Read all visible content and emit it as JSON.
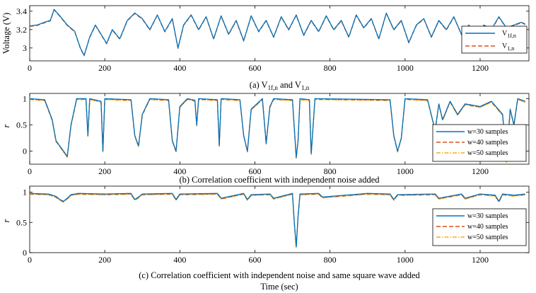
{
  "chart_data": [
    {
      "type": "line",
      "caption_prefix": "(a) V",
      "caption_sub1": "1f,n",
      "caption_mid": " and V",
      "caption_sub2": "1,n",
      "ylabel": "Voltage (V)",
      "xlim": [
        0,
        1330
      ],
      "ylim": [
        2.86,
        3.46
      ],
      "xticks": [
        0,
        200,
        400,
        600,
        800,
        1000,
        1200
      ],
      "yticks": [
        3,
        3.2,
        3.4
      ],
      "ytick_labels": [
        "3",
        "3.2",
        "3.4"
      ],
      "legend_position": "right",
      "series": [
        {
          "name": "V",
          "sub": "1f,n",
          "color": "#0072BD",
          "dash": "solid"
        },
        {
          "name": "V",
          "sub": "1,n",
          "color": "#D95319",
          "dash": "dashed"
        }
      ],
      "x": [
        0,
        20,
        40,
        55,
        65,
        80,
        100,
        120,
        135,
        145,
        160,
        175,
        190,
        205,
        220,
        240,
        260,
        280,
        300,
        320,
        340,
        360,
        380,
        395,
        410,
        430,
        450,
        470,
        490,
        510,
        530,
        550,
        570,
        590,
        610,
        630,
        650,
        670,
        690,
        710,
        730,
        750,
        770,
        790,
        810,
        830,
        850,
        870,
        890,
        910,
        930,
        950,
        970,
        990,
        1010,
        1030,
        1050,
        1070,
        1090,
        1110,
        1130,
        1150,
        1170,
        1190,
        1210,
        1230,
        1250,
        1270,
        1290,
        1310,
        1320
      ],
      "values": [
        3.24,
        3.25,
        3.28,
        3.3,
        3.42,
        3.35,
        3.25,
        3.18,
        3.0,
        2.92,
        3.12,
        3.25,
        3.15,
        3.05,
        3.2,
        3.1,
        3.3,
        3.38,
        3.32,
        3.2,
        3.36,
        3.18,
        3.32,
        3.0,
        3.25,
        3.36,
        3.2,
        3.34,
        3.1,
        3.35,
        3.15,
        3.3,
        3.08,
        3.35,
        3.18,
        3.3,
        3.12,
        3.34,
        3.2,
        3.36,
        3.14,
        3.3,
        3.18,
        3.35,
        3.2,
        3.3,
        3.12,
        3.36,
        3.22,
        3.32,
        3.1,
        3.38,
        3.2,
        3.3,
        3.06,
        3.25,
        3.32,
        3.12,
        3.3,
        3.2,
        3.34,
        3.15,
        3.25,
        3.08,
        3.25,
        3.2,
        3.34,
        3.22,
        3.25,
        3.28,
        3.26
      ]
    },
    {
      "type": "line",
      "caption": "(b) Correlation coefficient with independent noise added",
      "ylabel": "r",
      "xlim": [
        0,
        1330
      ],
      "ylim": [
        -0.25,
        1.1
      ],
      "xticks": [
        0,
        200,
        400,
        600,
        800,
        1000,
        1200
      ],
      "yticks": [
        0,
        0.5,
        1
      ],
      "ytick_labels": [
        "0",
        "0.5",
        "1"
      ],
      "legend_position": "right",
      "series": [
        {
          "name": "w=30 samples",
          "color": "#0072BD",
          "dash": "solid"
        },
        {
          "name": "w=40 samples",
          "color": "#D95319",
          "dash": "dashed"
        },
        {
          "name": "w=50 samples",
          "color": "#EDB120",
          "dash": "dashdot"
        }
      ],
      "x": [
        0,
        40,
        60,
        70,
        80,
        90,
        100,
        110,
        125,
        150,
        155,
        160,
        190,
        195,
        200,
        270,
        280,
        290,
        300,
        320,
        370,
        380,
        390,
        400,
        420,
        440,
        445,
        450,
        500,
        505,
        510,
        560,
        570,
        580,
        590,
        620,
        630,
        640,
        650,
        700,
        710,
        715,
        720,
        745,
        750,
        760,
        960,
        970,
        980,
        990,
        1000,
        1060,
        1080,
        1090,
        1100,
        1120,
        1140,
        1160,
        1200,
        1230,
        1260,
        1270,
        1280,
        1290,
        1300,
        1320
      ],
      "values": [
        1.0,
        0.98,
        0.6,
        0.2,
        0.1,
        0.0,
        -0.1,
        0.5,
        1.0,
        1.0,
        0.3,
        1.0,
        0.95,
        0.0,
        1.0,
        0.98,
        0.3,
        0.1,
        0.7,
        1.0,
        0.98,
        0.2,
        0.0,
        0.85,
        1.0,
        0.97,
        0.5,
        1.0,
        0.98,
        0.1,
        1.0,
        0.98,
        0.3,
        0.0,
        0.8,
        1.0,
        0.15,
        0.85,
        1.0,
        0.98,
        -0.12,
        0.2,
        1.0,
        0.98,
        -0.05,
        1.0,
        0.98,
        0.3,
        0.0,
        0.25,
        1.0,
        0.98,
        0.4,
        0.9,
        0.6,
        0.95,
        0.7,
        0.9,
        0.85,
        0.95,
        0.7,
        -0.2,
        0.8,
        0.5,
        1.0,
        0.95
      ]
    },
    {
      "type": "line",
      "caption": "(c) Correlation coefficient with independent noise and same square wave added",
      "xlabel": "Time (sec)",
      "ylabel": "r",
      "xlim": [
        0,
        1330
      ],
      "ylim": [
        0,
        1.1
      ],
      "xticks": [
        0,
        200,
        400,
        600,
        800,
        1000,
        1200
      ],
      "yticks": [
        0,
        0.5,
        1
      ],
      "ytick_labels": [
        "0",
        "0.5",
        "1"
      ],
      "legend_position": "right",
      "series": [
        {
          "name": "w=30 samples",
          "color": "#0072BD",
          "dash": "solid"
        },
        {
          "name": "w=40 samples",
          "color": "#D95319",
          "dash": "dashed"
        },
        {
          "name": "w=50 samples",
          "color": "#EDB120",
          "dash": "dashdot"
        }
      ],
      "x": [
        0,
        50,
        70,
        80,
        90,
        100,
        110,
        130,
        200,
        270,
        280,
        290,
        300,
        380,
        390,
        400,
        500,
        510,
        570,
        580,
        590,
        640,
        650,
        700,
        705,
        710,
        715,
        720,
        770,
        780,
        900,
        960,
        970,
        980,
        1080,
        1090,
        1150,
        1160,
        1200,
        1240,
        1250,
        1260,
        1290,
        1320
      ],
      "values": [
        0.98,
        0.97,
        0.93,
        0.88,
        0.85,
        0.9,
        0.96,
        0.98,
        0.97,
        0.98,
        0.88,
        0.92,
        0.97,
        0.98,
        0.88,
        0.97,
        0.98,
        0.9,
        0.98,
        0.88,
        0.96,
        0.97,
        0.9,
        0.98,
        0.5,
        0.1,
        0.6,
        0.97,
        0.98,
        0.92,
        0.98,
        0.97,
        0.88,
        0.96,
        0.97,
        0.9,
        0.97,
        0.9,
        0.97,
        0.95,
        0.85,
        0.97,
        0.95,
        0.97
      ]
    }
  ]
}
